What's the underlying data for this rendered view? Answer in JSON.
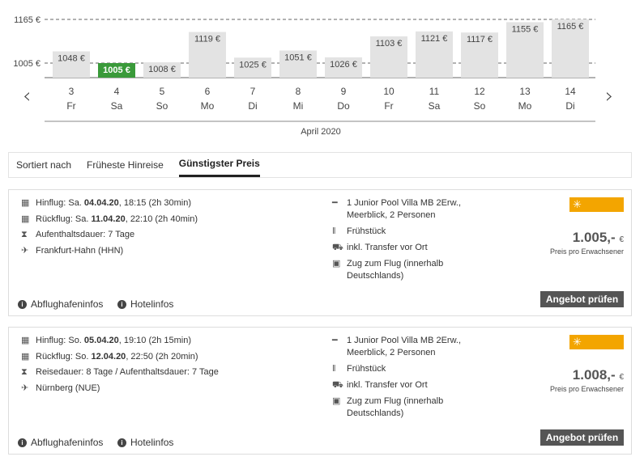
{
  "chart_data": {
    "type": "bar",
    "y_ticks": [
      "1165 €",
      "1005 €"
    ],
    "y_tick_values": [
      1165,
      1005
    ],
    "month": "April 2020",
    "days": [
      "3",
      "4",
      "5",
      "6",
      "7",
      "8",
      "9",
      "10",
      "11",
      "12",
      "13",
      "14"
    ],
    "weekdays": [
      "Fr",
      "Sa",
      "So",
      "Mo",
      "Di",
      "Mi",
      "Do",
      "Fr",
      "Sa",
      "So",
      "Mo",
      "Di"
    ],
    "values": [
      1048,
      1005,
      1008,
      1119,
      1025,
      1051,
      1026,
      1103,
      1121,
      1117,
      1155,
      1165
    ],
    "labels": [
      "1048 €",
      "1005 €",
      "1008 €",
      "1119 €",
      "1025 €",
      "1051 €",
      "1026 €",
      "1103 €",
      "1121 €",
      "1117 €",
      "1155 €",
      "1165 €"
    ],
    "selected_index": 1,
    "bar_color": "#e3e3e3",
    "selected_color": "#3a9a3a"
  },
  "nav": {
    "prev": "‹",
    "next": "›"
  },
  "sort": {
    "label": "Sortiert nach",
    "options": [
      "Früheste Hinreise",
      "Günstigster Preis"
    ],
    "active": "Günstigster Preis"
  },
  "offers": [
    {
      "outbound_pre": "Hinflug: Sa. ",
      "outbound_date": "04.04.20",
      "outbound_post": ", 18:15 (2h 30min)",
      "return_pre": "Rückflug: Sa. ",
      "return_date": "11.04.20",
      "return_post": ", 22:10 (2h 40min)",
      "duration": "Aufenthaltsdauer: 7 Tage",
      "airport": "Frankfurt-Hahn (HHN)",
      "room": "1 Junior Pool Villa MB 2Erw., Meerblick, 2 Personen",
      "board": "Frühstück",
      "transfer": "inkl. Transfer vor Ort",
      "train": "Zug zum Flug (innerhalb Deutschlands)",
      "price": "1.005,-",
      "currency": "€",
      "price_note": "Preis pro Erwachsener",
      "button": "Angebot prüfen",
      "airport_info": "Abflughafeninfos",
      "hotel_info": "Hotelinfos"
    },
    {
      "outbound_pre": "Hinflug: So. ",
      "outbound_date": "05.04.20",
      "outbound_post": ", 19:10 (2h 15min)",
      "return_pre": "Rückflug: So. ",
      "return_date": "12.04.20",
      "return_post": ", 22:50 (2h 20min)",
      "duration": "Reisedauer: 8 Tage / Aufenthaltsdauer: 7 Tage",
      "airport": "Nürnberg (NUE)",
      "room": "1 Junior Pool Villa MB 2Erw., Meerblick, 2 Personen",
      "board": "Frühstück",
      "transfer": "inkl. Transfer vor Ort",
      "train": "Zug zum Flug (innerhalb Deutschlands)",
      "price": "1.008,-",
      "currency": "€",
      "price_note": "Preis pro Erwachsener",
      "button": "Angebot prüfen",
      "airport_info": "Abflughafeninfos",
      "hotel_info": "Hotelinfos"
    }
  ],
  "logo": {
    "line1": "schauinsland",
    "line2": "reisen",
    "line3": "dynamisch",
    "color": "#f3a500"
  }
}
